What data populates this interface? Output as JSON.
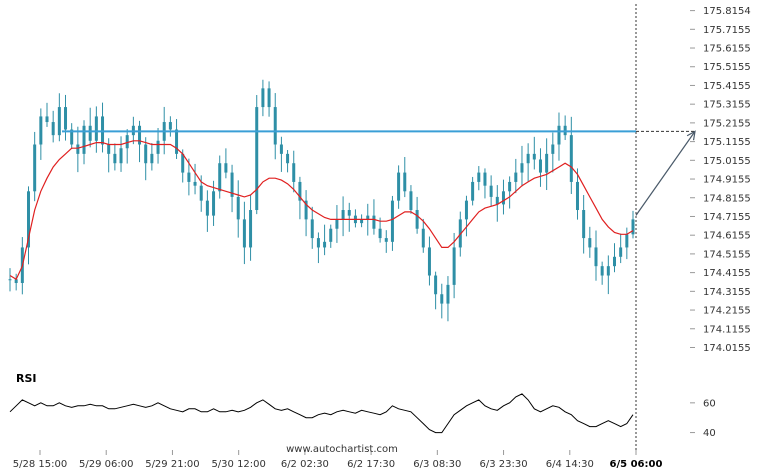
{
  "chart_data": {
    "type": "candlestick",
    "y_ticks": [
      "175.8154",
      "175.7155",
      "175.6155",
      "175.5155",
      "175.4155",
      "175.3155",
      "175.2155",
      "175.1155",
      "175.0155",
      "174.9155",
      "174.8155",
      "174.7155",
      "174.6155",
      "174.5155",
      "174.4155",
      "174.3155",
      "174.2155",
      "174.1155",
      "174.0155"
    ],
    "ylim": [
      173.97,
      175.84
    ],
    "x_ticks": [
      "5/28 15:00",
      "5/29 06:00",
      "5/29 21:00",
      "5/30 12:00",
      "6/2 02:30",
      "6/2 17:30",
      "6/3 08:30",
      "6/3 23:30",
      "6/4 14:30",
      "6/5 06:00"
    ],
    "x_ticks_bold_last": true,
    "resistance_level": 175.17,
    "forecast_target": 175.17,
    "price_series": [
      174.38,
      174.36,
      174.55,
      174.85,
      175.1,
      175.25,
      175.22,
      175.15,
      175.3,
      175.18,
      175.1,
      175.05,
      175.2,
      175.12,
      175.25,
      175.1,
      175.05,
      175.0,
      175.08,
      175.15,
      175.2,
      175.1,
      175.0,
      175.05,
      175.12,
      175.22,
      175.18,
      175.05,
      174.95,
      174.9,
      174.88,
      174.8,
      174.72,
      174.85,
      175.0,
      174.95,
      174.82,
      174.7,
      174.55,
      174.75,
      175.3,
      175.4,
      175.3,
      175.1,
      175.05,
      175.0,
      174.9,
      174.8,
      174.7,
      174.6,
      174.55,
      174.58,
      174.65,
      174.7,
      174.75,
      174.72,
      174.68,
      174.7,
      174.72,
      174.65,
      174.6,
      174.58,
      174.8,
      174.95,
      174.85,
      174.75,
      174.65,
      174.55,
      174.4,
      174.3,
      174.25,
      174.35,
      174.55,
      174.7,
      174.8,
      174.9,
      174.95,
      174.88,
      174.82,
      174.78,
      174.85,
      174.9,
      174.95,
      175.0,
      175.05,
      175.02,
      174.95,
      175.05,
      175.1,
      175.2,
      175.15,
      174.9,
      174.75,
      174.6,
      174.55,
      174.45,
      174.4,
      174.45,
      174.5,
      174.55,
      174.62,
      174.7
    ],
    "ma_series": [
      174.4,
      174.38,
      174.45,
      174.6,
      174.75,
      174.85,
      174.92,
      174.98,
      175.02,
      175.05,
      175.08,
      175.08,
      175.09,
      175.1,
      175.11,
      175.11,
      175.1,
      175.1,
      175.1,
      175.11,
      175.12,
      175.12,
      175.11,
      175.1,
      175.1,
      175.1,
      175.1,
      175.08,
      175.05,
      175.0,
      174.95,
      174.9,
      174.88,
      174.87,
      174.86,
      174.85,
      174.84,
      174.83,
      174.82,
      174.83,
      174.86,
      174.9,
      174.92,
      174.92,
      174.91,
      174.89,
      174.86,
      174.82,
      174.78,
      174.75,
      174.73,
      174.71,
      174.7,
      174.7,
      174.7,
      174.7,
      174.7,
      174.7,
      174.7,
      174.7,
      174.69,
      174.69,
      174.7,
      174.72,
      174.74,
      174.74,
      174.72,
      174.69,
      174.65,
      174.6,
      174.55,
      174.55,
      174.58,
      174.62,
      174.66,
      174.7,
      174.74,
      174.76,
      174.77,
      174.78,
      174.8,
      174.82,
      174.85,
      174.88,
      174.9,
      174.92,
      174.93,
      174.94,
      174.96,
      174.98,
      175.0,
      174.98,
      174.94,
      174.88,
      174.82,
      174.76,
      174.7,
      174.66,
      174.63,
      174.62,
      174.62,
      174.64
    ],
    "rsi": {
      "label": "RSI",
      "ticks": [
        "60",
        "40"
      ],
      "ylim": [
        35,
        72
      ],
      "values": [
        54,
        58,
        62,
        60,
        58,
        60,
        58,
        58,
        60,
        58,
        57,
        58,
        58,
        59,
        58,
        58,
        56,
        56,
        57,
        58,
        59,
        58,
        57,
        58,
        60,
        58,
        56,
        55,
        54,
        56,
        56,
        54,
        54,
        56,
        54,
        54,
        55,
        54,
        55,
        57,
        60,
        62,
        59,
        56,
        55,
        56,
        54,
        52,
        50,
        50,
        52,
        53,
        52,
        54,
        55,
        54,
        53,
        55,
        54,
        53,
        52,
        54,
        58,
        56,
        55,
        54,
        50,
        46,
        42,
        40,
        40,
        46,
        52,
        55,
        58,
        60,
        62,
        58,
        56,
        55,
        58,
        60,
        64,
        66,
        62,
        56,
        54,
        56,
        58,
        57,
        54,
        52,
        48,
        46,
        44,
        44,
        46,
        48,
        46,
        44,
        46,
        52
      ]
    },
    "watermark": "www.autochartist.com",
    "colors": {
      "candle": "#2e8fa6",
      "ma": "#e02020",
      "resistance": "#3a9fd6",
      "arrow": "#4a5a6a",
      "rsi": "#000000",
      "grid": "#d0d0d0"
    }
  }
}
